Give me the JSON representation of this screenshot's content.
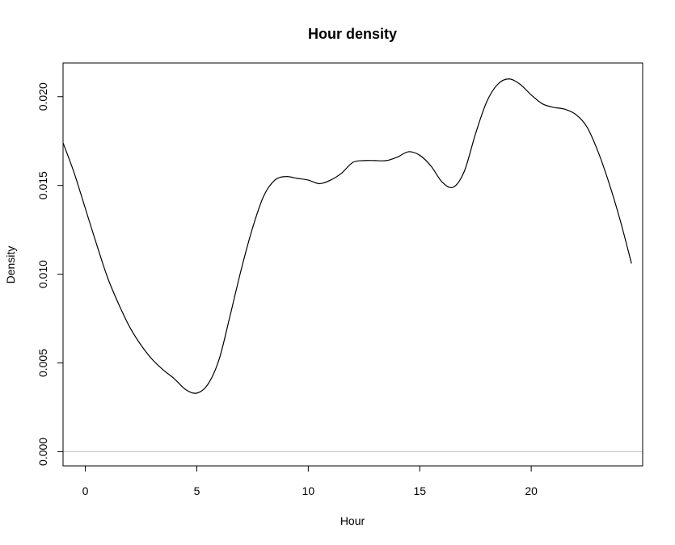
{
  "chart_data": {
    "type": "line",
    "title": "Hour density",
    "xlabel": "Hour",
    "ylabel": "Density",
    "xlim": [
      -1,
      25
    ],
    "ylim": [
      -0.0008,
      0.0219
    ],
    "xticks": [
      0,
      5,
      10,
      15,
      20
    ],
    "xtick_labels": [
      "0",
      "5",
      "10",
      "15",
      "20"
    ],
    "yticks": [
      0.0,
      0.005,
      0.01,
      0.015,
      0.02
    ],
    "ytick_labels": [
      "0.000",
      "0.005",
      "0.010",
      "0.015",
      "0.020"
    ],
    "grid": false,
    "legend": "none",
    "baseline": 0.0,
    "colors": {
      "line": "#000000",
      "baseline": "#bebebe",
      "frame": "#000000"
    },
    "series": [
      {
        "points": [
          [
            -1.0,
            0.0174
          ],
          [
            -0.5,
            0.0157
          ],
          [
            0.0,
            0.0137
          ],
          [
            0.5,
            0.0117
          ],
          [
            1.0,
            0.0098
          ],
          [
            1.5,
            0.0083
          ],
          [
            2.0,
            0.007
          ],
          [
            2.5,
            0.006
          ],
          [
            3.0,
            0.0052
          ],
          [
            3.5,
            0.0046
          ],
          [
            4.0,
            0.0041
          ],
          [
            4.5,
            0.0035
          ],
          [
            5.0,
            0.0033
          ],
          [
            5.5,
            0.0038
          ],
          [
            6.0,
            0.0052
          ],
          [
            6.5,
            0.0077
          ],
          [
            7.0,
            0.0103
          ],
          [
            7.5,
            0.0126
          ],
          [
            8.0,
            0.0144
          ],
          [
            8.5,
            0.0153
          ],
          [
            9.0,
            0.0155
          ],
          [
            9.5,
            0.0154
          ],
          [
            10.0,
            0.0153
          ],
          [
            10.5,
            0.0151
          ],
          [
            11.0,
            0.0153
          ],
          [
            11.5,
            0.0157
          ],
          [
            12.0,
            0.0163
          ],
          [
            12.5,
            0.0164
          ],
          [
            13.0,
            0.0164
          ],
          [
            13.5,
            0.0164
          ],
          [
            14.0,
            0.0166
          ],
          [
            14.5,
            0.0169
          ],
          [
            15.0,
            0.0167
          ],
          [
            15.5,
            0.0161
          ],
          [
            16.0,
            0.0152
          ],
          [
            16.5,
            0.0149
          ],
          [
            17.0,
            0.0158
          ],
          [
            17.5,
            0.0179
          ],
          [
            18.0,
            0.0197
          ],
          [
            18.5,
            0.0207
          ],
          [
            19.0,
            0.021
          ],
          [
            19.5,
            0.0207
          ],
          [
            20.0,
            0.0201
          ],
          [
            20.5,
            0.0196
          ],
          [
            21.0,
            0.0194
          ],
          [
            21.5,
            0.0193
          ],
          [
            22.0,
            0.019
          ],
          [
            22.5,
            0.0183
          ],
          [
            23.0,
            0.0169
          ],
          [
            23.5,
            0.0151
          ],
          [
            24.0,
            0.013
          ],
          [
            24.5,
            0.0106
          ]
        ]
      }
    ]
  }
}
